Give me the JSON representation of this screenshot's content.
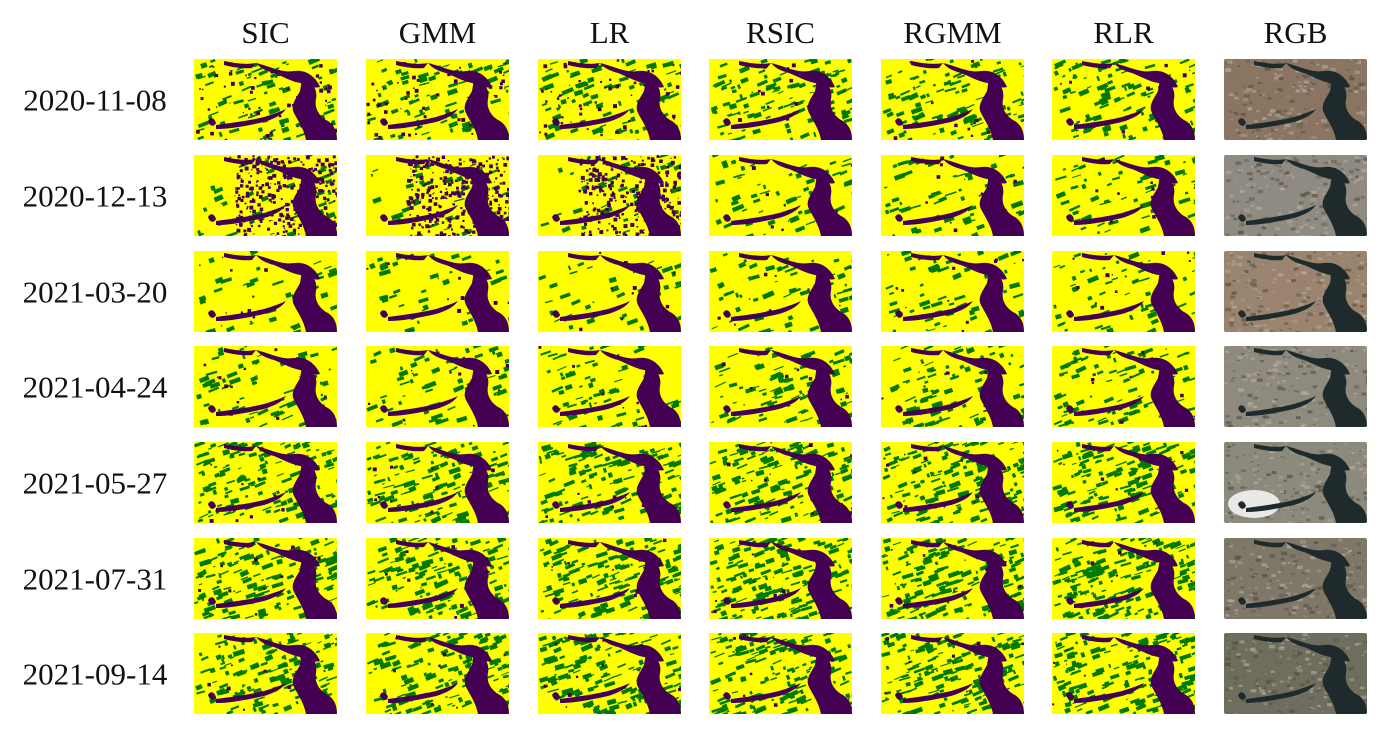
{
  "figure": {
    "columns": [
      "SIC",
      "GMM",
      "LR",
      "RSIC",
      "RGMM",
      "RLR",
      "RGB"
    ],
    "rows": [
      "2020-11-08",
      "2020-12-13",
      "2021-03-20",
      "2021-04-24",
      "2021-05-27",
      "2021-07-31",
      "2021-09-14"
    ],
    "classification_palette": {
      "water": "#440154",
      "vegetation": "#007a00",
      "bare": "#ffff00"
    },
    "rgb_palette": {
      "land": "#8c7a66",
      "water": "#1e2a2c"
    }
  }
}
